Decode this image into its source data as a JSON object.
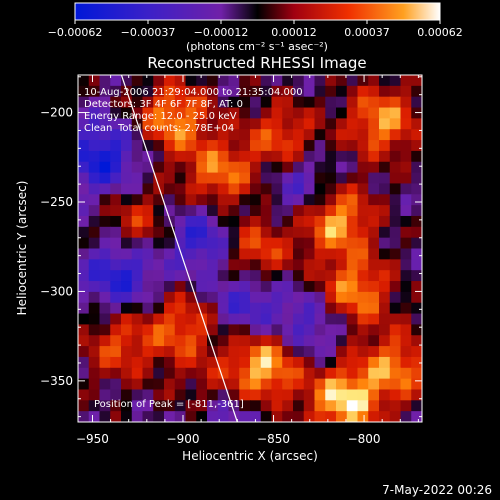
{
  "chart_data": {
    "type": "heatmap",
    "title": "Reconstructed RHESSI Image",
    "xlabel": "Heliocentric X (arcsec)",
    "ylabel": "Heliocentric Y (arcsec)",
    "xlim": [
      -958,
      -768
    ],
    "ylim": [
      -373,
      -179
    ],
    "xticks": [
      -950,
      -900,
      -850,
      -800
    ],
    "yticks": [
      -350,
      -300,
      -250,
      -200
    ],
    "xticklabels": [
      "−950",
      "−900",
      "−850",
      "−800"
    ],
    "yticklabels": [
      "−350",
      "−300",
      "−250",
      "−200"
    ],
    "colorbar": {
      "range": [
        -0.00062,
        0.00062
      ],
      "ticks": [
        "−0.00062",
        "−0.00037",
        "−0.00012",
        "0.00012",
        "0.00037",
        "0.00062"
      ],
      "unit_label": "(photons cm⁻² s⁻¹ asec⁻²)"
    },
    "annotations": {
      "time_range": "10-Aug-2006 21:29:04.000 to 21:35:04.000",
      "detectors": "Detectors: 3F 4F 6F 7F 8F, AT: 0",
      "energy": "Energy Range: 12.0 - 25.0 keV",
      "method": "Clean",
      "total_counts": "Total counts: 2.78E+04",
      "peak": "Position of Peak = [-811,-361]"
    },
    "limb_line": [
      [
        -934,
        -179
      ],
      [
        -870,
        -373
      ]
    ],
    "grid_cols": 32,
    "grid_rows": 32,
    "hotspots": [
      {
        "x": -905,
        "y": -203,
        "v": 0.0005
      },
      {
        "x": -880,
        "y": -235,
        "v": 0.00045
      },
      {
        "x": -845,
        "y": -215,
        "v": 0.0004
      },
      {
        "x": -790,
        "y": -205,
        "v": 0.0005
      },
      {
        "x": -815,
        "y": -260,
        "v": 0.00055
      },
      {
        "x": -860,
        "y": -278,
        "v": 0.00042
      },
      {
        "x": -805,
        "y": -300,
        "v": 0.0005
      },
      {
        "x": -855,
        "y": -342,
        "v": 0.0006
      },
      {
        "x": -811,
        "y": -361,
        "v": 0.00062
      },
      {
        "x": -900,
        "y": -320,
        "v": 0.0004
      },
      {
        "x": -935,
        "y": -330,
        "v": 0.00035
      },
      {
        "x": -925,
        "y": -262,
        "v": 0.00032
      },
      {
        "x": -782,
        "y": -342,
        "v": 0.00045
      },
      {
        "x": -885,
        "y": -360,
        "v": 0.00035
      }
    ],
    "coldspots": [
      {
        "x": -945,
        "y": -225,
        "v": -0.0005
      },
      {
        "x": -935,
        "y": -290,
        "v": -0.00045
      },
      {
        "x": -890,
        "y": -270,
        "v": -0.0004
      },
      {
        "x": -865,
        "y": -305,
        "v": -0.00035
      },
      {
        "x": -835,
        "y": -240,
        "v": -0.0003
      },
      {
        "x": -880,
        "y": -368,
        "v": -0.0004
      },
      {
        "x": -830,
        "y": -320,
        "v": -0.0003
      }
    ]
  },
  "footer": {
    "timestamp": "7-May-2022 00:26"
  }
}
